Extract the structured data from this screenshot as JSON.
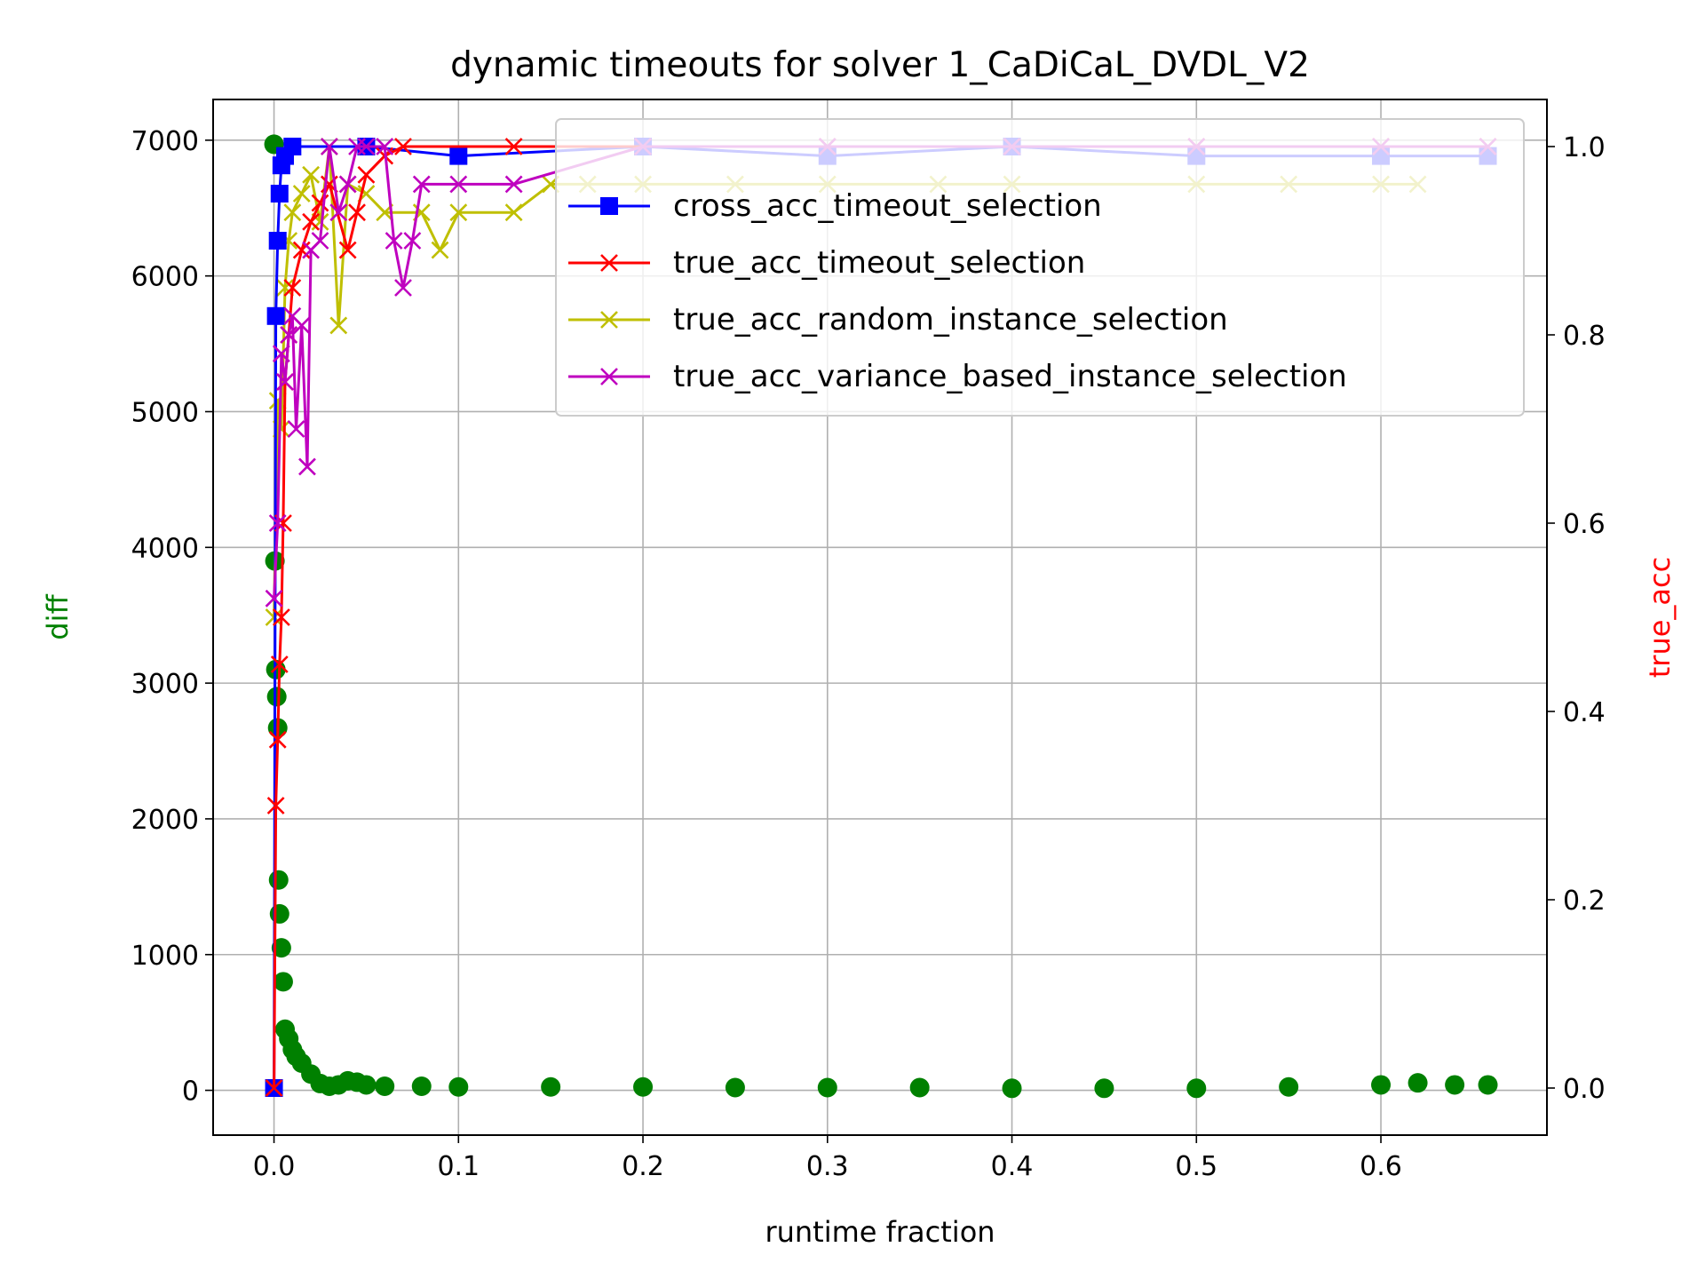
{
  "chart_data": {
    "type": "line",
    "title": "dynamic timeouts for solver 1_CaDiCaL_DVDL_V2",
    "xlabel": "runtime fraction",
    "ylabel_left": "diff",
    "ylabel_right": "true_acc",
    "xlim": [
      -0.033,
      0.69
    ],
    "ylim_left": [
      -330,
      7300
    ],
    "ylim_right": [
      -0.05,
      1.05
    ],
    "x_ticks": [
      0.0,
      0.1,
      0.2,
      0.3,
      0.4,
      0.5,
      0.6
    ],
    "x_tick_labels": [
      "0.0",
      "0.1",
      "0.2",
      "0.3",
      "0.4",
      "0.5",
      "0.6"
    ],
    "y_left_ticks": [
      0,
      1000,
      2000,
      3000,
      4000,
      5000,
      6000,
      7000
    ],
    "y_left_tick_labels": [
      "0",
      "1000",
      "2000",
      "3000",
      "4000",
      "5000",
      "6000",
      "7000"
    ],
    "y_right_ticks": [
      0.0,
      0.2,
      0.4,
      0.6,
      0.8,
      1.0
    ],
    "y_right_tick_labels": [
      "0.0",
      "0.2",
      "0.4",
      "0.6",
      "0.8",
      "1.0"
    ],
    "grid": true,
    "legend_position": "top-right",
    "colors": {
      "diff": "#008000",
      "cross": "#0000ff",
      "true_timeout": "#ff0000",
      "random": "#bfbf00",
      "variance": "#bf00bf",
      "left_label": "#008000",
      "right_label": "#ff0000"
    },
    "series": [
      {
        "name": "",
        "axis": "left",
        "marker": "circle",
        "color": "#008000",
        "x": [
          0.0,
          0.0005,
          0.001,
          0.0015,
          0.002,
          0.0025,
          0.003,
          0.004,
          0.005,
          0.006,
          0.008,
          0.01,
          0.012,
          0.015,
          0.02,
          0.025,
          0.03,
          0.035,
          0.04,
          0.045,
          0.05,
          0.06,
          0.08,
          0.1,
          0.15,
          0.2,
          0.25,
          0.3,
          0.35,
          0.4,
          0.45,
          0.5,
          0.55,
          0.6,
          0.62,
          0.64,
          0.658
        ],
        "y": [
          6970,
          3900,
          3100,
          2900,
          2670,
          1550,
          1300,
          1050,
          800,
          450,
          380,
          300,
          250,
          200,
          120,
          50,
          30,
          40,
          70,
          60,
          40,
          30,
          30,
          25,
          25,
          25,
          20,
          20,
          20,
          15,
          15,
          15,
          25,
          40,
          55,
          40,
          40
        ]
      },
      {
        "name": "cross_acc_timeout_selection",
        "axis": "right",
        "marker": "square",
        "color": "#0000ff",
        "x": [
          0.0,
          0.001,
          0.002,
          0.003,
          0.004,
          0.006,
          0.01,
          0.05,
          0.1,
          0.2,
          0.3,
          0.4,
          0.5,
          0.6,
          0.658
        ],
        "y": [
          0.0,
          0.82,
          0.9,
          0.95,
          0.98,
          0.99,
          1.0,
          1.0,
          0.99,
          1.0,
          0.99,
          1.0,
          0.99,
          0.99,
          0.99
        ]
      },
      {
        "name": "true_acc_timeout_selection",
        "axis": "right",
        "marker": "x",
        "color": "#ff0000",
        "x": [
          0.0,
          0.001,
          0.002,
          0.003,
          0.004,
          0.005,
          0.006,
          0.008,
          0.01,
          0.015,
          0.02,
          0.025,
          0.03,
          0.04,
          0.045,
          0.05,
          0.06,
          0.07,
          0.13,
          0.2,
          0.3,
          0.4,
          0.5,
          0.6,
          0.658
        ],
        "y": [
          0.0,
          0.3,
          0.37,
          0.45,
          0.5,
          0.6,
          0.75,
          0.8,
          0.85,
          0.89,
          0.92,
          0.94,
          0.96,
          0.89,
          0.93,
          0.97,
          0.99,
          1.0,
          1.0,
          1.0,
          1.0,
          1.0,
          1.0,
          1.0,
          1.0
        ]
      },
      {
        "name": "true_acc_random_instance_selection",
        "axis": "right",
        "marker": "x",
        "color": "#bfbf00",
        "x": [
          0.0,
          0.002,
          0.004,
          0.006,
          0.008,
          0.01,
          0.015,
          0.02,
          0.025,
          0.03,
          0.035,
          0.04,
          0.05,
          0.06,
          0.08,
          0.09,
          0.1,
          0.13,
          0.15,
          0.17,
          0.2,
          0.25,
          0.3,
          0.36,
          0.4,
          0.5,
          0.55,
          0.6,
          0.62
        ],
        "y": [
          0.5,
          0.73,
          0.7,
          0.85,
          0.9,
          0.93,
          0.95,
          0.97,
          0.92,
          1.0,
          0.81,
          0.96,
          0.95,
          0.93,
          0.93,
          0.89,
          0.93,
          0.93,
          0.96,
          0.96,
          0.96,
          0.96,
          0.96,
          0.96,
          0.96,
          0.96,
          0.96,
          0.96,
          0.96
        ]
      },
      {
        "name": "true_acc_variance_based_instance_selection",
        "axis": "right",
        "marker": "x",
        "color": "#bf00bf",
        "x": [
          0.0,
          0.002,
          0.004,
          0.006,
          0.008,
          0.01,
          0.012,
          0.015,
          0.018,
          0.02,
          0.025,
          0.03,
          0.035,
          0.04,
          0.045,
          0.05,
          0.06,
          0.065,
          0.07,
          0.075,
          0.08,
          0.1,
          0.13,
          0.2,
          0.3,
          0.4,
          0.5,
          0.6,
          0.658
        ],
        "y": [
          0.52,
          0.6,
          0.78,
          0.75,
          0.8,
          0.82,
          0.7,
          0.81,
          0.66,
          0.89,
          0.9,
          1.0,
          0.93,
          0.96,
          1.0,
          1.0,
          1.0,
          0.9,
          0.85,
          0.9,
          0.96,
          0.96,
          0.96,
          1.0,
          1.0,
          1.0,
          1.0,
          1.0,
          1.0
        ]
      }
    ]
  }
}
